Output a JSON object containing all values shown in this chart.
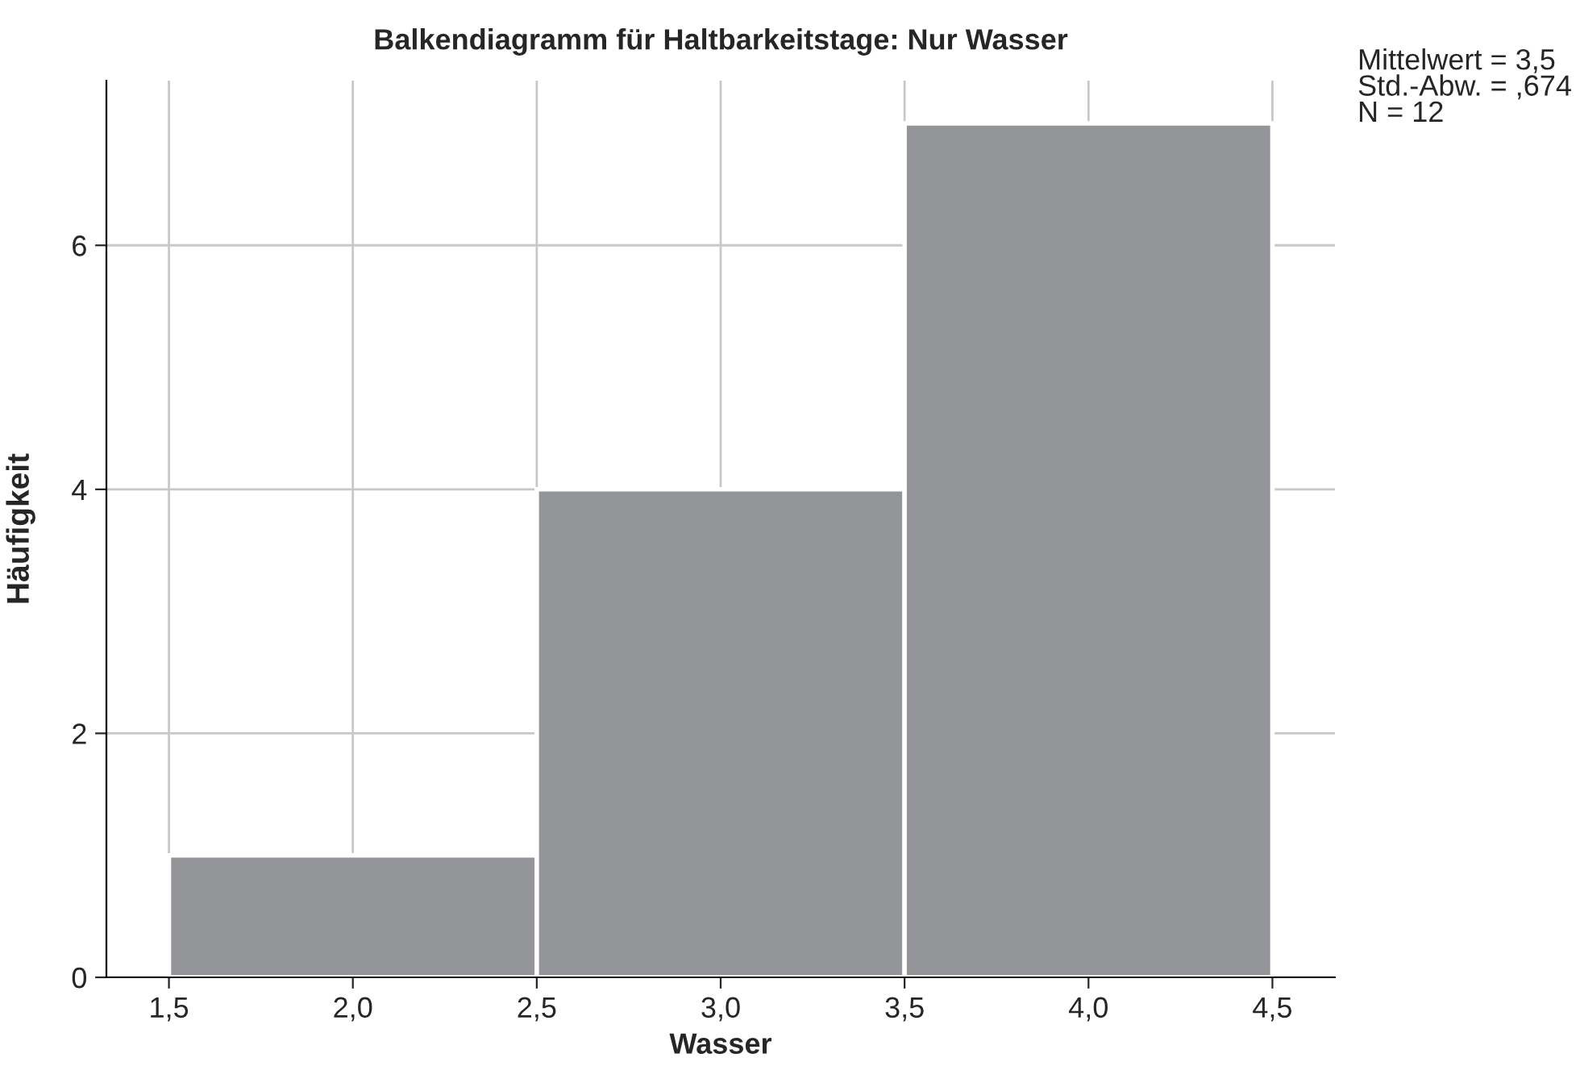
{
  "chart_data": {
    "type": "histogram",
    "title": "Balkendiagramm für Haltbarkeitstage: Nur Wasser",
    "xlabel": "Wasser",
    "ylabel": "Häufigkeit",
    "bins": [
      1.5,
      2.5,
      3.5,
      4.5
    ],
    "values": [
      1,
      4,
      7
    ],
    "color": "#939598",
    "xlim": [
      1.33,
      4.67
    ],
    "ylim": [
      0,
      7.35
    ],
    "xticks": [
      {
        "value": 1.5,
        "label": "1,5"
      },
      {
        "value": 2.0,
        "label": "2,0"
      },
      {
        "value": 2.5,
        "label": "2,5"
      },
      {
        "value": 3.0,
        "label": "3,0"
      },
      {
        "value": 3.5,
        "label": "3,5"
      },
      {
        "value": 4.0,
        "label": "4,0"
      },
      {
        "value": 4.5,
        "label": "4,5"
      }
    ],
    "yticks": [
      0,
      2,
      4,
      6
    ],
    "grid": true,
    "annotations": [
      "Mittelwert = 3,5\nStd.-Abw. = ,674\nN = 12"
    ]
  }
}
